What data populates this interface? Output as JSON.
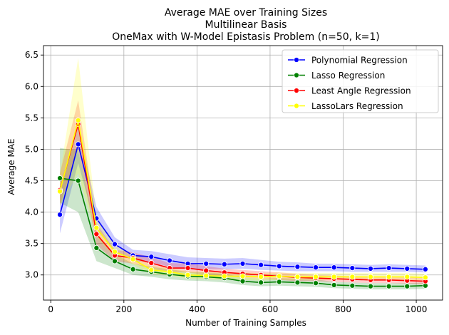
{
  "chart_data": {
    "type": "line",
    "title_lines": [
      "Average MAE over Training Sizes",
      "Multilinear Basis",
      "OneMax with W-Model Epistasis Problem (n=50, k=1)"
    ],
    "xlabel": "Number of Training Samples",
    "ylabel": "Average MAE",
    "xlim": [
      -20,
      1072
    ],
    "ylim": [
      2.6,
      6.65
    ],
    "xticks": [
      0,
      200,
      400,
      600,
      800,
      1000
    ],
    "xtick_labels": [
      "0",
      "200",
      "400",
      "600",
      "800",
      "1000"
    ],
    "yticks": [
      3.0,
      3.5,
      4.0,
      4.5,
      5.0,
      5.5,
      6.0,
      6.5
    ],
    "ytick_labels": [
      "3.0",
      "3.5",
      "4.0",
      "4.5",
      "5.0",
      "5.5",
      "6.0",
      "6.5"
    ],
    "grid": true,
    "legend_position": "top-right",
    "x": [
      25,
      75,
      125,
      175,
      225,
      275,
      325,
      375,
      425,
      475,
      525,
      575,
      625,
      675,
      725,
      775,
      825,
      875,
      925,
      975,
      1025
    ],
    "series": [
      {
        "name": "Polynomial Regression",
        "color": "#0000ff",
        "values": [
          3.96,
          5.08,
          3.9,
          3.49,
          3.31,
          3.29,
          3.23,
          3.18,
          3.18,
          3.17,
          3.18,
          3.16,
          3.14,
          3.13,
          3.12,
          3.12,
          3.11,
          3.1,
          3.11,
          3.1,
          3.09
        ],
        "lower": [
          3.66,
          4.78,
          3.72,
          3.38,
          3.22,
          3.2,
          3.13,
          3.09,
          3.09,
          3.09,
          3.1,
          3.08,
          3.07,
          3.06,
          3.06,
          3.06,
          3.05,
          3.05,
          3.05,
          3.05,
          3.04
        ],
        "upper": [
          4.3,
          5.36,
          4.08,
          3.6,
          3.4,
          3.38,
          3.33,
          3.28,
          3.27,
          3.26,
          3.27,
          3.24,
          3.21,
          3.2,
          3.18,
          3.18,
          3.17,
          3.16,
          3.17,
          3.16,
          3.15
        ]
      },
      {
        "name": "Lasso Regression",
        "color": "#008000",
        "values": [
          4.54,
          4.5,
          3.43,
          3.22,
          3.09,
          3.05,
          3.01,
          2.98,
          2.97,
          2.95,
          2.9,
          2.88,
          2.89,
          2.88,
          2.87,
          2.84,
          2.83,
          2.82,
          2.82,
          2.82,
          2.83
        ],
        "lower": [
          4.15,
          4.0,
          3.22,
          3.11,
          3.0,
          2.97,
          2.93,
          2.91,
          2.9,
          2.88,
          2.84,
          2.82,
          2.83,
          2.82,
          2.81,
          2.79,
          2.78,
          2.77,
          2.77,
          2.77,
          2.78
        ],
        "upper": [
          5.02,
          4.98,
          3.63,
          3.33,
          3.18,
          3.13,
          3.09,
          3.05,
          3.04,
          3.02,
          2.96,
          2.94,
          2.95,
          2.94,
          2.93,
          2.89,
          2.88,
          2.87,
          2.87,
          2.87,
          2.88
        ]
      },
      {
        "name": "Least Angle Regression",
        "color": "#ff0000",
        "values": [
          4.35,
          5.4,
          3.65,
          3.31,
          3.27,
          3.19,
          3.11,
          3.11,
          3.07,
          3.04,
          3.02,
          3.0,
          2.98,
          2.96,
          2.95,
          2.94,
          2.93,
          2.92,
          2.92,
          2.91,
          2.9
        ],
        "lower": [
          4.1,
          5.02,
          3.48,
          3.22,
          3.18,
          3.1,
          3.04,
          3.04,
          3.0,
          2.98,
          2.96,
          2.94,
          2.92,
          2.9,
          2.9,
          2.89,
          2.88,
          2.87,
          2.87,
          2.86,
          2.85
        ],
        "upper": [
          4.62,
          5.78,
          3.82,
          3.4,
          3.36,
          3.28,
          3.19,
          3.18,
          3.14,
          3.1,
          3.08,
          3.06,
          3.04,
          3.02,
          3.0,
          2.99,
          2.98,
          2.97,
          2.97,
          2.96,
          2.95
        ]
      },
      {
        "name": "LassoLars Regression",
        "color": "#ffff00",
        "values": [
          4.33,
          5.46,
          3.75,
          3.37,
          3.25,
          3.08,
          3.05,
          3.0,
          2.99,
          2.98,
          2.98,
          2.97,
          2.98,
          2.97,
          2.97,
          2.97,
          2.97,
          2.97,
          2.97,
          2.97,
          2.96
        ],
        "lower": [
          4.1,
          4.62,
          3.6,
          3.28,
          3.17,
          3.01,
          2.99,
          2.94,
          2.93,
          2.92,
          2.92,
          2.91,
          2.92,
          2.92,
          2.92,
          2.92,
          2.92,
          2.92,
          2.92,
          2.92,
          2.91
        ],
        "upper": [
          4.6,
          6.45,
          3.92,
          3.47,
          3.33,
          3.15,
          3.11,
          3.06,
          3.05,
          3.04,
          3.04,
          3.03,
          3.04,
          3.03,
          3.03,
          3.03,
          3.03,
          3.03,
          3.03,
          3.03,
          3.02
        ]
      }
    ]
  }
}
